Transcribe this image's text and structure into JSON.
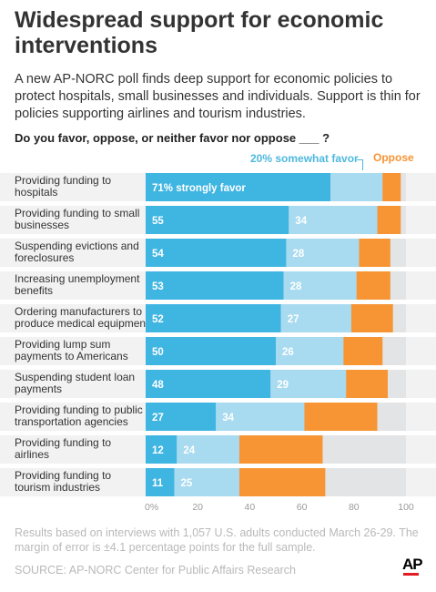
{
  "header": {
    "title": "Widespread support for economic interventions",
    "intro": "A new AP-NORC poll finds deep support for economic policies to protect hospitals, small businesses and individuals. Support is thin for policies supporting airlines and tourism industries.",
    "question": "Do you favor, oppose, or neither favor nor oppose ___ ?"
  },
  "legend": {
    "somewhat": "20% somewhat favor",
    "oppose": "Oppose"
  },
  "colors": {
    "strongly": "#3fb5e2",
    "somewhat": "#a8daf0",
    "oppose": "#f79433",
    "neither": "#e3e4e6",
    "band": "#f2f2f2"
  },
  "chart_data": {
    "type": "bar",
    "orientation": "horizontal",
    "stacked": true,
    "categories": [
      "Providing funding to hospitals",
      "Providing funding to small businesses",
      "Suspending evictions and foreclosures",
      "Increasing unemployment benefits",
      "Ordering manufacturers to produce medical equipment",
      "Providing lump sum payments to Americans",
      "Suspending student loan payments",
      "Providing funding to public transportation agencies",
      "Providing funding to airlines",
      "Providing funding to tourism industries"
    ],
    "category_lines": [
      [
        "Providing funding to",
        "hospitals"
      ],
      [
        "Providing funding to small",
        "businesses"
      ],
      [
        "Suspending evictions and",
        "foreclosures"
      ],
      [
        "Increasing unemployment",
        "benefits"
      ],
      [
        "Ordering manufacturers to",
        "produce medical equipment"
      ],
      [
        "Providing lump sum",
        "payments to Americans"
      ],
      [
        "Suspending student loan",
        "payments"
      ],
      [
        "Providing funding to public",
        "transportation agencies"
      ],
      [
        "Providing funding to",
        "airlines"
      ],
      [
        "Providing funding to",
        "tourism industries"
      ]
    ],
    "series": [
      {
        "name": "Strongly favor",
        "values": [
          71,
          55,
          54,
          53,
          52,
          50,
          48,
          27,
          12,
          11
        ]
      },
      {
        "name": "somewhat favor",
        "values": [
          20,
          34,
          28,
          28,
          27,
          26,
          29,
          34,
          24,
          25
        ]
      },
      {
        "name": "Oppose",
        "values": [
          7,
          9,
          12,
          13,
          16,
          15,
          16,
          28,
          32,
          33
        ]
      }
    ],
    "value_labels": {
      "strongly": [
        "71% strongly favor",
        "55",
        "54",
        "53",
        "52",
        "50",
        "48",
        "27",
        "12",
        "11"
      ],
      "somewhat": [
        "",
        "34",
        "28",
        "28",
        "27",
        "26",
        "29",
        "34",
        "24",
        "25"
      ]
    },
    "xlim": [
      0,
      100
    ],
    "x_ticks": [
      0,
      20,
      40,
      60,
      80,
      100
    ],
    "x_tick_labels": [
      "0%",
      "20",
      "40",
      "60",
      "80",
      "100"
    ],
    "legend_placement": "top-right",
    "grid": false
  },
  "notes": {
    "footnote": "Results based on interviews with 1,057 U.S. adults conducted March 26-29. The margin of error is ±4.1 percentage points for the full sample.",
    "source": "SOURCE: AP-NORC Center for Public Affairs Research",
    "logo": "AP"
  }
}
